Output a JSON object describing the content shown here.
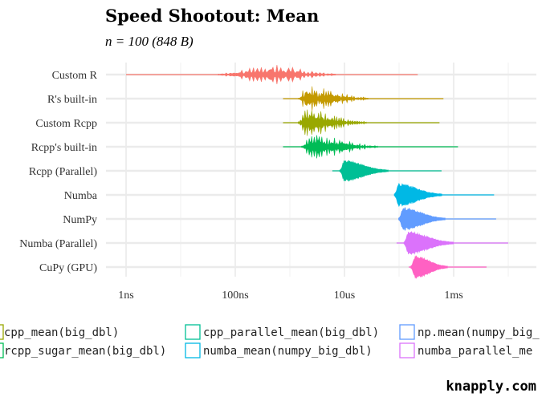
{
  "chart_data": {
    "type": "violin",
    "title": "Speed Shootout: Mean",
    "subtitle": "n = 100 (848 B)",
    "xlabel": "",
    "ylabel": "",
    "x_scale": "log10",
    "x_unit": "seconds",
    "x_ticks": [
      {
        "value": 1e-09,
        "label": "1ns"
      },
      {
        "value": 1e-07,
        "label": "100ns"
      },
      {
        "value": 1e-05,
        "label": "10us"
      },
      {
        "value": 0.001,
        "label": "1ms"
      }
    ],
    "xlim": [
      1e-09,
      0.01
    ],
    "grid": true,
    "categories": [
      "Custom R",
      "R's built-in",
      "Custom Rcpp",
      "Rcpp's built-in",
      "Rcpp (Parallel)",
      "Numba",
      "NumPy",
      "Numba (Parallel)",
      "CuPy (GPU)"
    ],
    "series": [
      {
        "category": "Custom R",
        "color": "#F8766D",
        "min": 1e-09,
        "mode": 4e-07,
        "max": 0.00022
      },
      {
        "category": "R's built-in",
        "color": "#C49A00",
        "min": 7.5e-07,
        "mode": 2e-06,
        "max": 0.00065
      },
      {
        "category": "Custom Rcpp",
        "color": "#99A800",
        "min": 7.5e-07,
        "mode": 2e-06,
        "max": 0.00055
      },
      {
        "category": "Rcpp's built-in",
        "color": "#00BC56",
        "min": 7.5e-07,
        "mode": 2.5e-06,
        "max": 0.0012
      },
      {
        "category": "Rcpp (Parallel)",
        "color": "#00BF95",
        "min": 6e-06,
        "mode": 1e-05,
        "max": 0.0006
      },
      {
        "category": "Numba",
        "color": "#00B8E5",
        "min": 9e-05,
        "mode": 0.0001,
        "max": 0.0055
      },
      {
        "category": "NumPy",
        "color": "#619CFF",
        "min": 0.0001,
        "mode": 0.00012,
        "max": 0.006
      },
      {
        "category": "Numba (Parallel)",
        "color": "#DB72FB",
        "min": 9e-05,
        "mode": 0.00015,
        "max": 0.01
      },
      {
        "category": "CuPy (GPU)",
        "color": "#FF61C3",
        "min": 0.00015,
        "mode": 0.0002,
        "max": 0.004
      }
    ]
  },
  "legend": {
    "items": [
      {
        "label": "cpp_mean(big_dbl)",
        "color": "#99A800"
      },
      {
        "label": "cpp_parallel_mean(big_dbl)",
        "color": "#00BF95"
      },
      {
        "label": "np.mean(numpy_big_",
        "color": "#619CFF"
      },
      {
        "label": "rcpp_sugar_mean(big_dbl)",
        "color": "#00BC56"
      },
      {
        "label": "numba_mean(numpy_big_dbl)",
        "color": "#00B8E5"
      },
      {
        "label": "numba_parallel_me",
        "color": "#DB72FB"
      }
    ]
  },
  "brand": "knapply.com"
}
